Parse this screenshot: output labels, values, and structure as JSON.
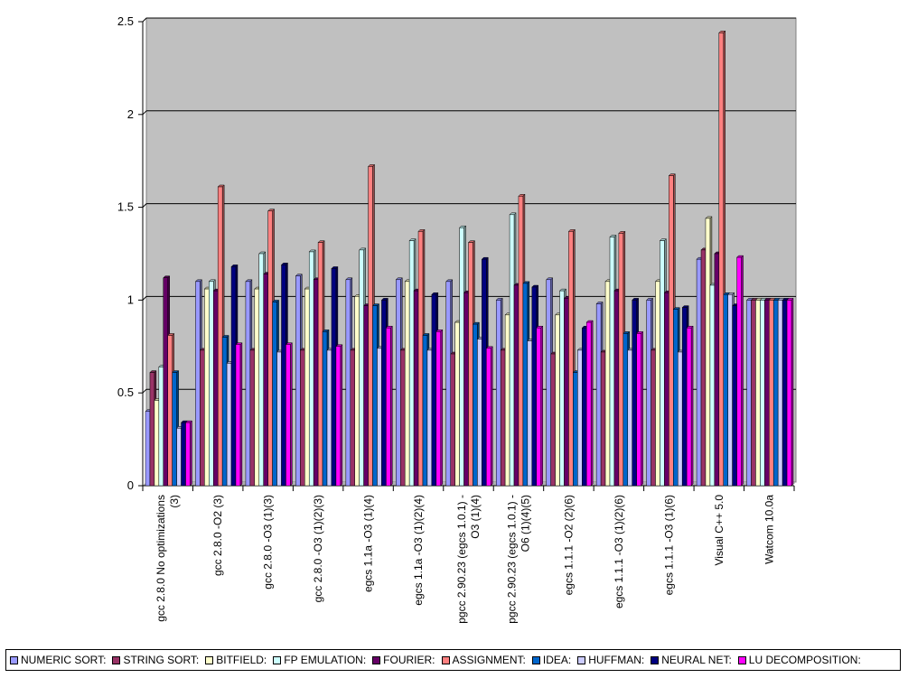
{
  "chart_data": {
    "type": "bar",
    "title": "",
    "xlabel": "",
    "ylabel": "",
    "ylim": [
      0,
      2.5
    ],
    "yticks": [
      "0",
      "0.5",
      "1",
      "1.5",
      "2",
      "2.5"
    ],
    "grid": true,
    "legend_position": "bottom",
    "categories": [
      [
        "gcc 2.8.0 No optimizations",
        "(3)"
      ],
      [
        "gcc 2.8.0 -O2 (3)"
      ],
      [
        "gcc 2.8.0 -O3 (1)(3)"
      ],
      [
        "gcc 2.8.0 -O3 (1)(2)(3)"
      ],
      [
        "egcs 1.1a -O3 (1)(4)"
      ],
      [
        "egcs 1.1a -O3 (1)(2)(4)"
      ],
      [
        "pgcc 2.90.23 (egcs 1.0.1) -",
        "O3 (1)(4)"
      ],
      [
        "pgcc 2.90.23 (egcs 1.0.1) -",
        "O6 (1)(4)(5)"
      ],
      [
        "egcs 1.1.1 -O2 (2)(6)"
      ],
      [
        "egcs 1.1.1 -O3 (1)(2)(6)"
      ],
      [
        "egcs 1.1.1 -O3 (1)(6)"
      ],
      [
        "Visual C++ 5.0"
      ],
      [
        "Watcom 10.0a"
      ]
    ],
    "series": [
      {
        "name": "NUMERIC SORT:",
        "color": "#9999ff",
        "values": [
          0.4,
          1.1,
          1.1,
          1.13,
          1.11,
          1.11,
          1.1,
          1.0,
          1.11,
          0.98,
          1.0,
          1.22,
          1.0
        ]
      },
      {
        "name": "STRING SORT:",
        "color": "#993366",
        "values": [
          0.61,
          0.73,
          0.73,
          0.73,
          0.73,
          0.73,
          0.71,
          0.73,
          0.71,
          0.72,
          0.73,
          1.27,
          1.0
        ]
      },
      {
        "name": "BITFIELD:",
        "color": "#ffffcc",
        "values": [
          0.46,
          1.06,
          1.06,
          1.06,
          1.02,
          1.1,
          0.88,
          0.92,
          0.92,
          1.1,
          1.1,
          1.44,
          1.0
        ]
      },
      {
        "name": "FP EMULATION:",
        "color": "#ccffff",
        "values": [
          0.64,
          1.1,
          1.25,
          1.26,
          1.27,
          1.32,
          1.39,
          1.46,
          1.05,
          1.34,
          1.32,
          1.08,
          1.0
        ]
      },
      {
        "name": "FOURIER:",
        "color": "#660066",
        "values": [
          1.12,
          1.05,
          1.14,
          1.11,
          0.97,
          1.05,
          1.04,
          1.08,
          1.01,
          1.05,
          1.04,
          1.25,
          1.0
        ]
      },
      {
        "name": "ASSIGNMENT:",
        "color": "#ff8080",
        "values": [
          0.81,
          1.61,
          1.48,
          1.31,
          1.72,
          1.37,
          1.31,
          1.56,
          1.37,
          1.36,
          1.67,
          2.44,
          1.0
        ]
      },
      {
        "name": "IDEA:",
        "color": "#0066cc",
        "values": [
          0.61,
          0.8,
          0.99,
          0.83,
          0.97,
          0.81,
          0.87,
          1.09,
          0.61,
          0.82,
          0.95,
          1.03,
          1.0
        ]
      },
      {
        "name": "HUFFMAN:",
        "color": "#ccccff",
        "values": [
          0.31,
          0.66,
          0.72,
          0.73,
          0.74,
          0.73,
          0.79,
          0.78,
          0.73,
          0.73,
          0.72,
          1.03,
          1.0
        ]
      },
      {
        "name": "NEURAL NET:",
        "color": "#000080",
        "values": [
          0.34,
          1.18,
          1.19,
          1.17,
          1.0,
          1.03,
          1.22,
          1.07,
          0.85,
          1.0,
          0.96,
          0.97,
          1.0
        ]
      },
      {
        "name": "LU DECOMPOSITION:",
        "color": "#ff00ff",
        "values": [
          0.34,
          0.76,
          0.76,
          0.75,
          0.85,
          0.83,
          0.74,
          0.85,
          0.88,
          0.82,
          0.85,
          1.23,
          1.0
        ]
      }
    ]
  }
}
